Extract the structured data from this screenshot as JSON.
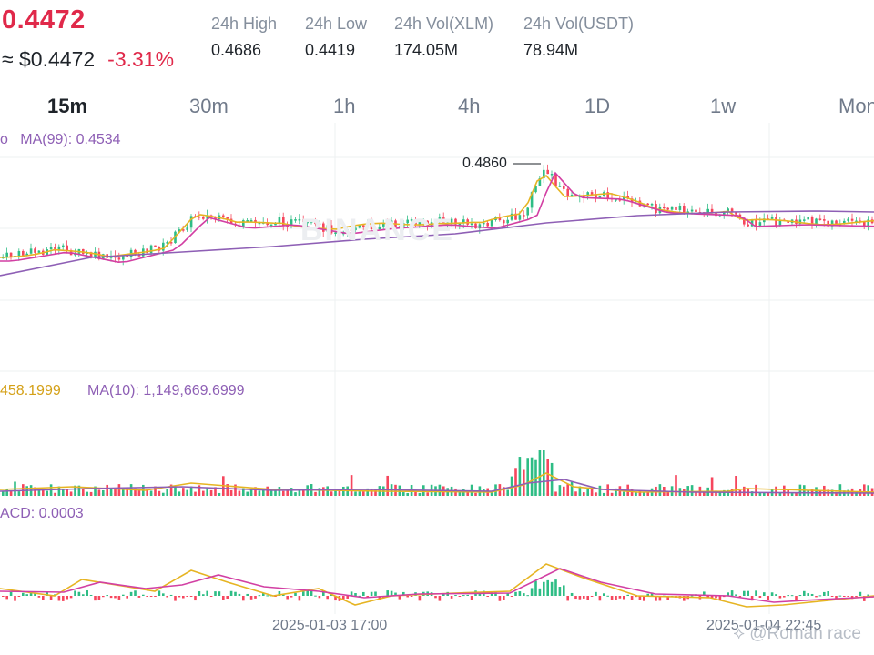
{
  "ticker": {
    "last_price": "0.4472",
    "approx_usd": "≈ $0.4472",
    "change_pct": "-3.31%"
  },
  "stats": [
    {
      "label": "24h High",
      "value": "0.4686"
    },
    {
      "label": "24h Low",
      "value": "0.4419"
    },
    {
      "label": "24h Vol(XLM)",
      "value": "174.05M"
    },
    {
      "label": "24h Vol(USDT)",
      "value": "78.94M"
    }
  ],
  "timeframes": [
    "15m",
    "30m",
    "1h",
    "4h",
    "1D",
    "1w",
    "Mon"
  ],
  "active_timeframe": "15m",
  "indicators": {
    "price_ma": "MA(99): 0.4534",
    "price_ma_prefix": "o",
    "vol_ma5": "458.1999",
    "vol_ma10": "MA(10): 1,149,669.6999",
    "macd": "ACD: 0.0003"
  },
  "peak_label": "0.4860",
  "dates": [
    "2025-01-03 17:00",
    "2025-01-04 22:45"
  ],
  "watermark": "@Roman race",
  "logo_text": "BINANCE",
  "colors": {
    "up": "#2ebd85",
    "down": "#f6465d",
    "ma7": "#e6b422",
    "ma25": "#d23fa3",
    "ma99": "#8e5fb5",
    "grid": "#eef0f2",
    "price_red": "#e0294a"
  }
}
